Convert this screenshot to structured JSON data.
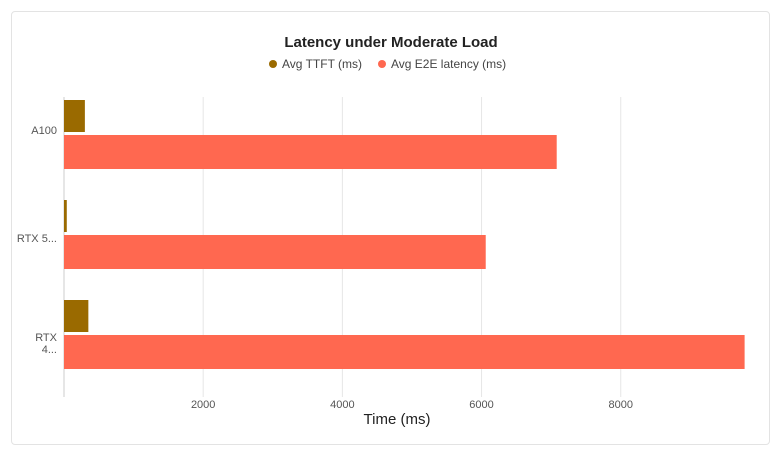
{
  "chart_data": {
    "type": "bar",
    "orientation": "horizontal",
    "title": "Latency under Moderate Load",
    "xlabel": "Time (ms)",
    "ylabel": "",
    "xlim": [
      0,
      9800
    ],
    "x_ticks": [
      2000,
      4000,
      6000,
      8000
    ],
    "grid": true,
    "legend_position": "top",
    "categories": [
      "A100",
      "RTX 5...",
      "RTX 4..."
    ],
    "series": [
      {
        "name": "Avg TTFT (ms)",
        "color": "#9a6a00",
        "values": [
          300,
          40,
          350
        ]
      },
      {
        "name": "Avg E2E latency (ms)",
        "color": "#ff6850",
        "values": [
          7080,
          6060,
          9780
        ]
      }
    ]
  }
}
